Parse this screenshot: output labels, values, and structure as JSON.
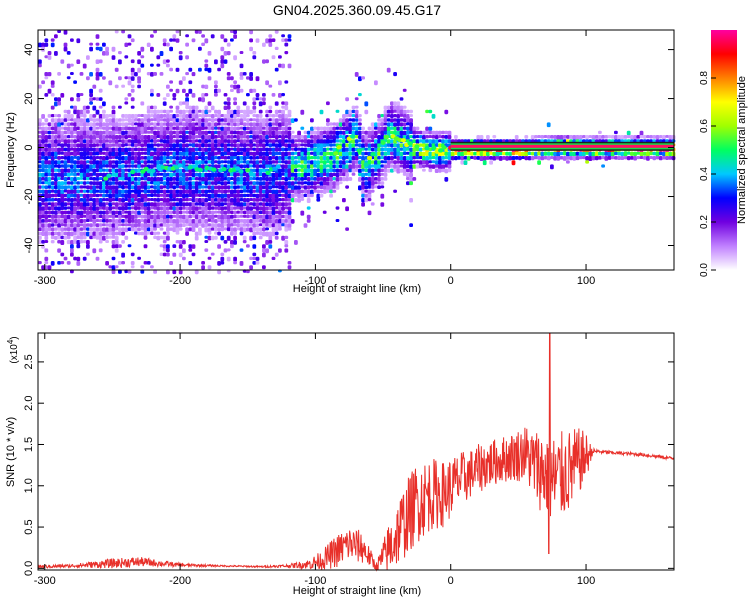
{
  "title": "GN04.2025.360.09.45.G17",
  "charts": [
    {
      "type": "heatmap",
      "name": "spectrogram",
      "xlabel": "Height of straight line (km)",
      "ylabel": "Frequency (Hz)",
      "xlim": [
        -305,
        165
      ],
      "ylim": [
        -50,
        48
      ],
      "xticks": [
        -300,
        -200,
        -100,
        0,
        100
      ],
      "xtick_labels": [
        "-300",
        "-200",
        "-100",
        "0",
        "100"
      ],
      "yticks": [
        -40,
        -20,
        0,
        20,
        40
      ],
      "ytick_labels": [
        "-40",
        "-20",
        "0",
        "20",
        "40"
      ],
      "ridge": {
        "x": [
          -255,
          -230,
          -200,
          -170,
          -140,
          -120,
          -100,
          -85,
          -75,
          -70,
          -65,
          -60,
          -55,
          -50,
          -45,
          -40,
          -30,
          -20,
          -10,
          0,
          20,
          50,
          80,
          100,
          165
        ],
        "y": [
          -12,
          -10,
          -8,
          -9,
          -10,
          -8,
          -5,
          -2,
          3,
          5,
          -8,
          -4,
          -2,
          2,
          6,
          4,
          1,
          0,
          -1,
          0,
          0,
          0,
          1,
          0.5,
          0.5
        ]
      },
      "colorbar": {
        "label": "Normalized spectral amplitude",
        "range": [
          0,
          1
        ],
        "ticks": [
          0.0,
          0.2,
          0.4,
          0.6,
          0.8
        ],
        "tick_labels": [
          "0.0",
          "0.2",
          "0.4",
          "0.6",
          "0.8"
        ],
        "colors": [
          "#ffffff",
          "#c080ff",
          "#7000e0",
          "#0000ff",
          "#00c8ff",
          "#00ff60",
          "#a0ff00",
          "#ffff00",
          "#ff8000",
          "#ff0000",
          "#ff00a0"
        ]
      }
    },
    {
      "type": "line",
      "name": "snr",
      "xlabel": "Height of straight line (km)",
      "ylabel": "SNR (10 * v/v)",
      "scale_label": "(x10",
      "scale_exp": "4",
      "xlim": [
        -305,
        165
      ],
      "ylim": [
        -0.02,
        2.85
      ],
      "xticks": [
        -300,
        -200,
        -100,
        0,
        100
      ],
      "xtick_labels": [
        "-300",
        "-200",
        "-100",
        "0",
        "100"
      ],
      "yticks": [
        0.0,
        0.5,
        1.0,
        1.5,
        2.0,
        2.5
      ],
      "ytick_labels": [
        "0.0",
        "0.5",
        "1.0",
        "1.5",
        "2.0",
        "2.5"
      ],
      "series": [
        {
          "name": "SNR",
          "color": "#e8302a",
          "x": [
            -305,
            -280,
            -250,
            -230,
            -200,
            -170,
            -140,
            -120,
            -105,
            -95,
            -85,
            -75,
            -65,
            -55,
            -45,
            -35,
            -25,
            -15,
            -5,
            5,
            15,
            25,
            35,
            45,
            55,
            62,
            70,
            75,
            80,
            90,
            95,
            100,
            105,
            120,
            140,
            165
          ],
          "y": [
            0.02,
            0.03,
            0.06,
            0.08,
            0.04,
            0.03,
            0.02,
            0.03,
            0.05,
            0.1,
            0.2,
            0.3,
            0.25,
            0.02,
            0.25,
            0.55,
            0.8,
            0.9,
            0.9,
            1.05,
            1.15,
            1.25,
            1.3,
            1.35,
            1.4,
            1.25,
            1.15,
            1.05,
            1.1,
            1.2,
            1.3,
            1.35,
            1.42,
            1.4,
            1.38,
            1.33
          ],
          "noise": [
            0.02,
            0.02,
            0.06,
            0.06,
            0.02,
            0.01,
            0.01,
            0.02,
            0.06,
            0.12,
            0.2,
            0.22,
            0.2,
            0.05,
            0.35,
            0.45,
            0.5,
            0.45,
            0.4,
            0.35,
            0.3,
            0.3,
            0.28,
            0.3,
            0.35,
            0.45,
            0.55,
            0.6,
            0.55,
            0.5,
            0.4,
            0.3,
            0.03,
            0.02,
            0.02,
            0.02
          ]
        }
      ]
    }
  ]
}
